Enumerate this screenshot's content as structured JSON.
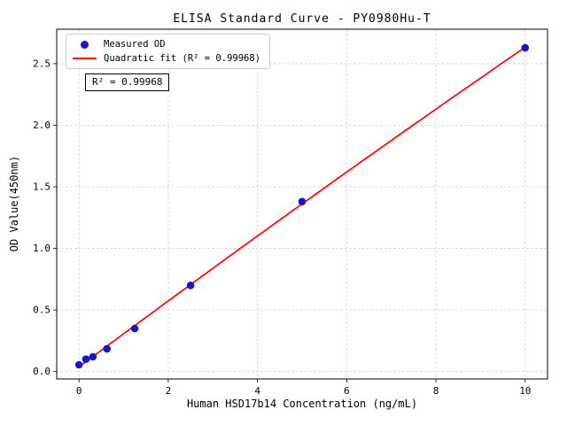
{
  "chart_data": {
    "type": "scatter",
    "title": "ELISA Standard Curve - PY0980Hu-T",
    "xlabel": "Human HSD17b14 Concentration (ng/mL)",
    "ylabel": "OD Value(450nm)",
    "xlim": [
      -0.5,
      10.5
    ],
    "ylim": [
      -0.06,
      2.78
    ],
    "xticks": [
      0,
      2,
      4,
      6,
      8,
      10
    ],
    "yticks": [
      0.0,
      0.5,
      1.0,
      1.5,
      2.0,
      2.5
    ],
    "grid": true,
    "grid_color": "#c9c9c9",
    "annotation": "R² = 0.99968",
    "legend": {
      "position": "upper-left",
      "entries": [
        {
          "label": "Measured OD",
          "marker": "dot",
          "color": "#1515cd"
        },
        {
          "label": "Quadratic fit (R² = 0.99968)",
          "marker": "line",
          "color": "#ff0000"
        }
      ]
    },
    "series": [
      {
        "name": "Measured OD",
        "type": "scatter",
        "color": "#1515cd",
        "x": [
          0,
          0.156,
          0.3125,
          0.625,
          1.25,
          2.5,
          5,
          10
        ],
        "y": [
          0.055,
          0.1,
          0.12,
          0.185,
          0.35,
          0.7,
          1.38,
          2.63
        ]
      },
      {
        "name": "Quadratic fit",
        "type": "line",
        "color": "#ff0000",
        "fit": "quadratic",
        "fit_range": [
          0,
          10
        ],
        "r_squared": 0.99968
      }
    ]
  }
}
